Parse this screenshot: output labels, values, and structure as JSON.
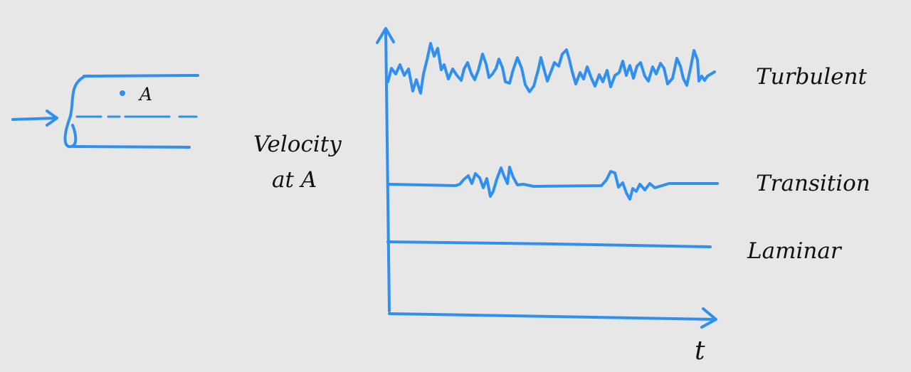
{
  "colors": {
    "background": "#e7e7e7",
    "ink_blue": "#2f8ff2",
    "ink_black": "#111111"
  },
  "pipe": {
    "point_label": "A"
  },
  "chart": {
    "ylabel_line1": "Velocity",
    "ylabel_line2": "at A",
    "xlabel": "t"
  },
  "chart_data": {
    "type": "line",
    "xlabel": "t",
    "ylabel": "Velocity at A",
    "grid": false,
    "series": [
      {
        "name": "Turbulent",
        "pattern": "strong random fluctuations"
      },
      {
        "name": "Transition",
        "pattern": "mostly steady with intermittent bursts"
      },
      {
        "name": "Laminar",
        "pattern": "steady constant"
      }
    ]
  }
}
